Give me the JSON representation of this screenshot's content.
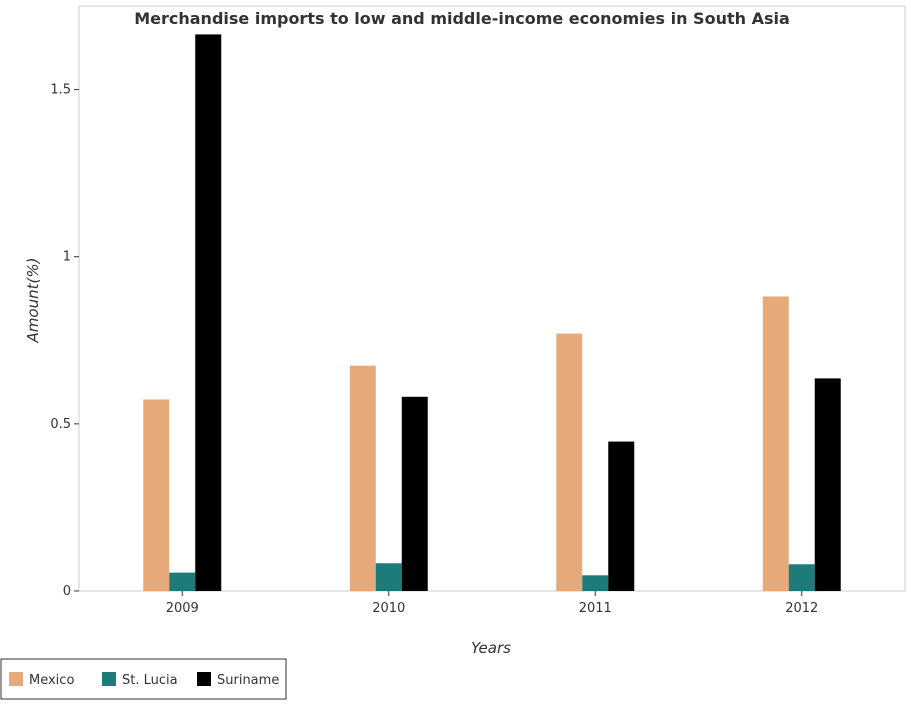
{
  "chart_data": {
    "type": "bar",
    "title": "Merchandise imports to low and middle-income economies in South Asia",
    "xlabel": "Years",
    "ylabel": "Amount(%)",
    "categories": [
      "2009",
      "2010",
      "2011",
      "2012"
    ],
    "series": [
      {
        "name": "Mexico",
        "color": "#e6a97a",
        "values": [
          0.573,
          0.674,
          0.77,
          0.881
        ]
      },
      {
        "name": "St. Lucia",
        "color": "#1e7b7b",
        "values": [
          0.055,
          0.083,
          0.047,
          0.08
        ]
      },
      {
        "name": "Suriname",
        "color": "#000000",
        "values": [
          1.665,
          0.581,
          0.447,
          0.636
        ]
      }
    ],
    "ylim": [
      0,
      1.75
    ],
    "yticks": [
      0,
      0.5,
      1,
      1.5
    ],
    "ytick_labels": [
      "0",
      "0.5",
      "1",
      "1.5"
    ],
    "grid": false,
    "legend_position": "bottom-left"
  }
}
